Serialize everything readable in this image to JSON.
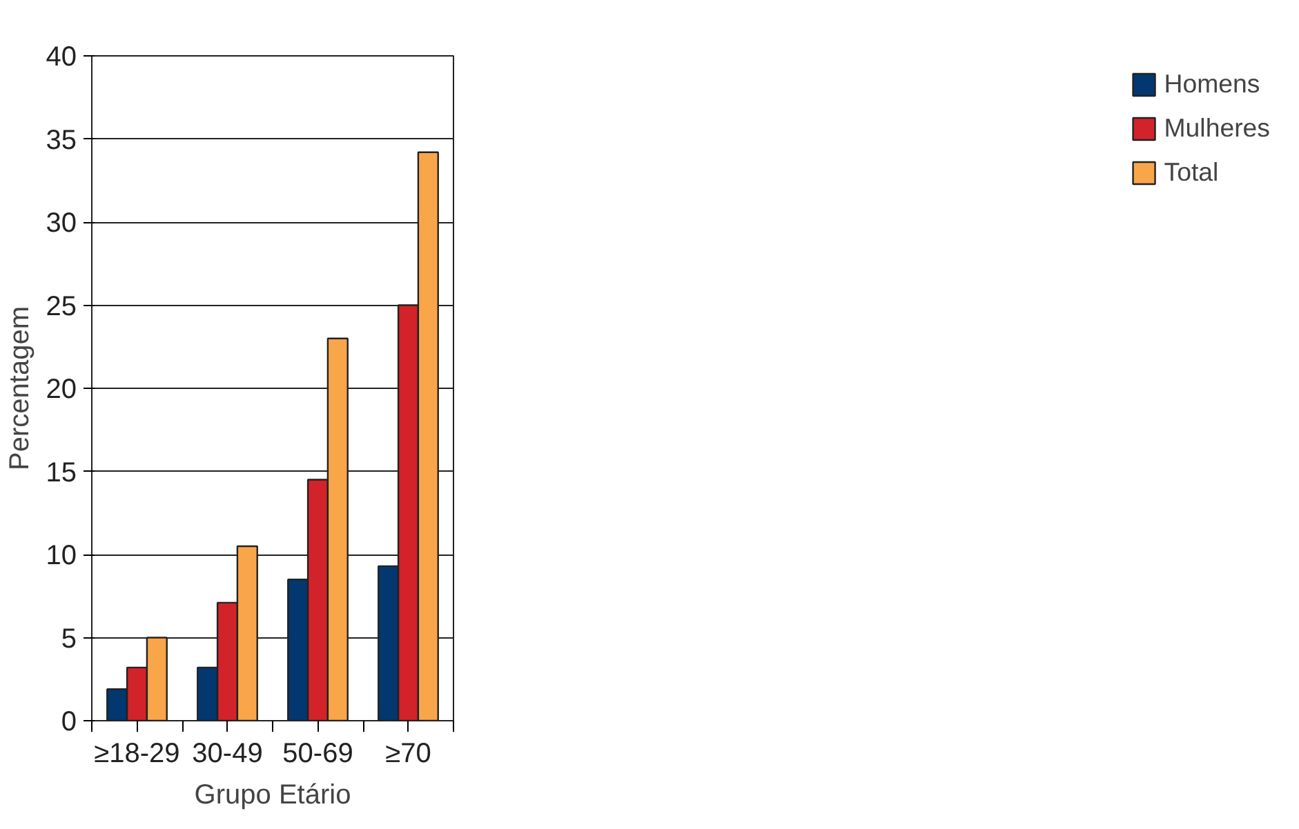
{
  "chart_data": {
    "type": "bar",
    "xlabel": "Grupo Etário",
    "ylabel": "Percentagem",
    "categories": [
      "≥18-29",
      "30-49",
      "50-69",
      "≥70"
    ],
    "series": [
      {
        "name": "Homens",
        "color": "#03376f",
        "values": [
          1.9,
          3.2,
          8.5,
          9.3
        ]
      },
      {
        "name": "Mulheres",
        "color": "#d2232a",
        "values": [
          3.2,
          7.1,
          14.5,
          25.0
        ]
      },
      {
        "name": "Total",
        "color": "#f9a64a",
        "values": [
          5.0,
          10.5,
          23.0,
          34.2
        ]
      }
    ],
    "ylim": [
      0,
      40
    ],
    "yticks": [
      0,
      5,
      10,
      15,
      20,
      25,
      30,
      35,
      40
    ],
    "grid": "y",
    "legend": "right"
  }
}
